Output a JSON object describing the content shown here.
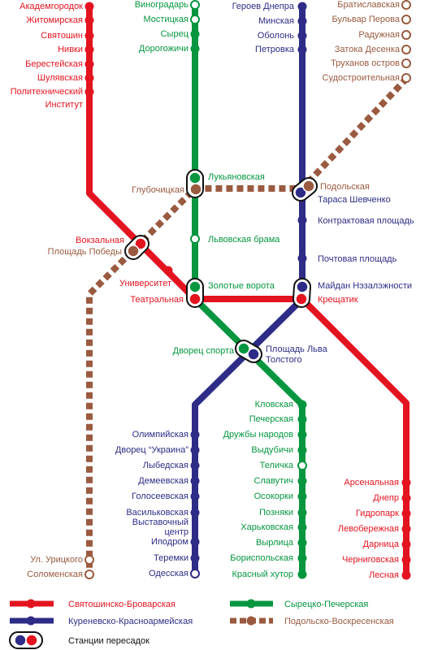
{
  "colors": {
    "red": "#e3141f",
    "blue": "#2e2c86",
    "green": "#05963f",
    "brown": "#9a5a3f",
    "background": "#ffffff"
  },
  "lines": [
    {
      "id": "red",
      "color": "#e3141f",
      "stations": [
        {
          "label": "Академгородок"
        },
        {
          "label": "Житомирская"
        },
        {
          "label": "Святошин"
        },
        {
          "label": "Нивки"
        },
        {
          "label": "Берестейская"
        },
        {
          "label": "Шулявская"
        },
        {
          "label": "Политехнический"
        },
        {
          "label": "Институт"
        },
        {
          "label": "Вокзальная"
        },
        {
          "label": "Университет"
        },
        {
          "label": "Театральная"
        },
        {
          "label": "Крещатик"
        },
        {
          "label": "Арсенальная"
        },
        {
          "label": "Днепр"
        },
        {
          "label": "Гидропарк"
        },
        {
          "label": "Левобережная"
        },
        {
          "label": "Дарница"
        },
        {
          "label": "Черниговская"
        },
        {
          "label": "Лесная"
        }
      ]
    },
    {
      "id": "blue",
      "color": "#2e2c86",
      "stations": [
        {
          "label": "Героев Днепра"
        },
        {
          "label": "Минская"
        },
        {
          "label": "Оболонь"
        },
        {
          "label": "Петровка"
        },
        {
          "label": "Тараса Шевченко"
        },
        {
          "label": "Контрактовая площадь"
        },
        {
          "label": "Почтовая площадь"
        },
        {
          "label": "Майдан Нэзалэжности"
        },
        {
          "label": "Площадь Льва"
        },
        {
          "label": "Толстого"
        },
        {
          "label": "Олимпийская"
        },
        {
          "label": "Дворец “Украина”"
        },
        {
          "label": "Лыбедская"
        },
        {
          "label": "Демеевская"
        },
        {
          "label": "Голосеевская"
        },
        {
          "label": "Васильковская"
        },
        {
          "label": "Выставочный"
        },
        {
          "label": "центр"
        },
        {
          "label": "Иподром"
        },
        {
          "label": "Теремки"
        },
        {
          "label": "Одесская"
        }
      ]
    },
    {
      "id": "green",
      "color": "#05963f",
      "stations": [
        {
          "label": "Виноградарь"
        },
        {
          "label": "Мостицкая"
        },
        {
          "label": "Сырец"
        },
        {
          "label": "Дорогожичи"
        },
        {
          "label": "Лукьяновская"
        },
        {
          "label": "Львовская брама"
        },
        {
          "label": "Золотые ворота"
        },
        {
          "label": "Дворец спорта"
        },
        {
          "label": "Кловская"
        },
        {
          "label": "Печерская"
        },
        {
          "label": "Дружбы народов"
        },
        {
          "label": "Выдубичи"
        },
        {
          "label": "Теличка"
        },
        {
          "label": "Славутич"
        },
        {
          "label": "Осокорки"
        },
        {
          "label": "Позняки"
        },
        {
          "label": "Харьковская"
        },
        {
          "label": "Вырлица"
        },
        {
          "label": "Бориспольская"
        },
        {
          "label": "Красный хутор"
        }
      ]
    },
    {
      "id": "brown",
      "color": "#9a5a3f",
      "stations": [
        {
          "label": "Братиславская"
        },
        {
          "label": "Бульвар Перова"
        },
        {
          "label": "Радужная"
        },
        {
          "label": "Затока Десенка"
        },
        {
          "label": "Труханов остров"
        },
        {
          "label": "Судостроительная"
        },
        {
          "label": "Подольская"
        },
        {
          "label": "Глубочицкая"
        },
        {
          "label": "Площадь Победы"
        },
        {
          "label": "Ул. Урицкого"
        },
        {
          "label": "Соломенская"
        }
      ]
    }
  ],
  "legend": [
    {
      "line": "red",
      "label": "Святошинско-Броварская"
    },
    {
      "line": "green",
      "label": "Сырецко-Печерская"
    },
    {
      "line": "blue",
      "label": "Куреневско-Красноармейская"
    },
    {
      "line": "brown",
      "label": "Подольско-Воскресенская"
    },
    {
      "line": "transfer",
      "label": "Станции пересадок"
    }
  ]
}
